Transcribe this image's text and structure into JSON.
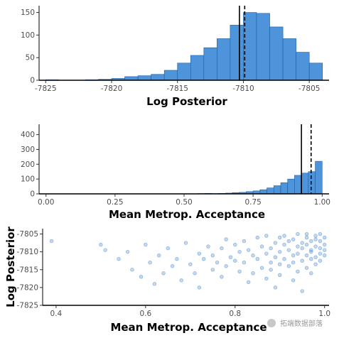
{
  "colors": {
    "bar_fill": "#4d94db",
    "bar_stroke": "#1a5ea8",
    "point_fill": "#4d94db",
    "axis": "#000000",
    "text": "#4d4d4d"
  },
  "chart_data": [
    {
      "type": "bar",
      "panel": "top",
      "xlabel": "Log Posterior",
      "ylabel": "",
      "xlim": [
        -7825.5,
        -7803.5
      ],
      "ylim": [
        0,
        165
      ],
      "xticks": [
        -7825,
        -7820,
        -7815,
        -7810,
        -7805
      ],
      "xtick_labels": [
        "-7825",
        "-7820",
        "-7815",
        "-7810",
        "-7805"
      ],
      "yticks": [
        0,
        50,
        100,
        150
      ],
      "ytick_labels": [
        "0",
        "50",
        "100",
        "150"
      ],
      "bin_edges": [
        -7825,
        -7824,
        -7823,
        -7822,
        -7821,
        -7820,
        -7819,
        -7818,
        -7817,
        -7816,
        -7815,
        -7814,
        -7813,
        -7812,
        -7811,
        -7810,
        -7809,
        -7808,
        -7807,
        -7806,
        -7805,
        -7804
      ],
      "values": [
        1,
        0,
        0,
        1,
        2,
        4,
        8,
        10,
        13,
        22,
        38,
        55,
        72,
        92,
        122,
        150,
        148,
        118,
        92,
        62,
        38,
        12
      ],
      "vlines": [
        {
          "x": -7810.3,
          "style": "solid"
        },
        {
          "x": -7809.9,
          "style": "dashed"
        }
      ],
      "grid": false
    },
    {
      "type": "bar",
      "panel": "middle",
      "xlabel": "Mean Metrop. Acceptance",
      "ylabel": "",
      "xlim": [
        -0.025,
        1.025
      ],
      "ylim": [
        0,
        470
      ],
      "xticks": [
        0.0,
        0.25,
        0.5,
        0.75,
        1.0
      ],
      "xtick_labels": [
        "0.00",
        "0.25",
        "0.50",
        "0.75",
        "1.00"
      ],
      "yticks": [
        0,
        100,
        200,
        300,
        400
      ],
      "ytick_labels": [
        "0",
        "100",
        "200",
        "300",
        "400"
      ],
      "bin_edges": [
        0.0,
        0.025,
        0.05,
        0.075,
        0.1,
        0.125,
        0.15,
        0.175,
        0.2,
        0.225,
        0.25,
        0.275,
        0.3,
        0.325,
        0.35,
        0.375,
        0.4,
        0.425,
        0.45,
        0.475,
        0.5,
        0.525,
        0.55,
        0.575,
        0.6,
        0.625,
        0.65,
        0.675,
        0.7,
        0.725,
        0.75,
        0.775,
        0.8,
        0.825,
        0.85,
        0.875,
        0.9,
        0.925,
        0.95,
        0.975,
        1.0
      ],
      "values": [
        1,
        1,
        1,
        1,
        1,
        1,
        1,
        1,
        1,
        1,
        1,
        1,
        1,
        1,
        1,
        1,
        1,
        1,
        1,
        1,
        1,
        1,
        2,
        3,
        2,
        3,
        5,
        8,
        10,
        15,
        20,
        28,
        40,
        55,
        75,
        100,
        125,
        140,
        150,
        220
      ],
      "vlines": [
        {
          "x": 0.925,
          "style": "solid"
        },
        {
          "x": 0.96,
          "style": "dashed"
        }
      ],
      "grid": false
    },
    {
      "type": "scatter",
      "panel": "bottom",
      "xlabel": "Mean Metrop. Acceptance",
      "ylabel": "Log Posterior",
      "xlim": [
        0.37,
        1.01
      ],
      "ylim": [
        -7825,
        -7803.5
      ],
      "xticks": [
        0.4,
        0.6,
        0.8,
        1.0
      ],
      "xtick_labels": [
        "0.4",
        "0.6",
        "0.8",
        "1.0"
      ],
      "yticks": [
        -7805,
        -7810,
        -7815,
        -7820,
        -7825
      ],
      "ytick_labels": [
        "-7805",
        "-7810",
        "-7815",
        "-7820",
        "-7825"
      ],
      "points": [
        [
          0.39,
          -7807.0
        ],
        [
          0.5,
          -7808.0
        ],
        [
          0.51,
          -7809.5
        ],
        [
          0.54,
          -7812.0
        ],
        [
          0.56,
          -7810.0
        ],
        [
          0.57,
          -7815.0
        ],
        [
          0.59,
          -7817.0
        ],
        [
          0.6,
          -7808.0
        ],
        [
          0.61,
          -7813.0
        ],
        [
          0.62,
          -7819.0
        ],
        [
          0.63,
          -7811.0
        ],
        [
          0.64,
          -7816.0
        ],
        [
          0.65,
          -7809.0
        ],
        [
          0.66,
          -7814.0
        ],
        [
          0.67,
          -7812.0
        ],
        [
          0.68,
          -7818.0
        ],
        [
          0.69,
          -7807.5
        ],
        [
          0.7,
          -7813.5
        ],
        [
          0.71,
          -7816.0
        ],
        [
          0.72,
          -7810.5
        ],
        [
          0.72,
          -7820.0
        ],
        [
          0.73,
          -7812.0
        ],
        [
          0.74,
          -7808.5
        ],
        [
          0.75,
          -7815.0
        ],
        [
          0.75,
          -7811.0
        ],
        [
          0.76,
          -7813.0
        ],
        [
          0.77,
          -7809.0
        ],
        [
          0.77,
          -7817.0
        ],
        [
          0.78,
          -7806.5
        ],
        [
          0.78,
          -7814.0
        ],
        [
          0.79,
          -7811.5
        ],
        [
          0.8,
          -7812.5
        ],
        [
          0.8,
          -7808.0
        ],
        [
          0.81,
          -7815.5
        ],
        [
          0.81,
          -7810.0
        ],
        [
          0.82,
          -7807.0
        ],
        [
          0.82,
          -7813.0
        ],
        [
          0.83,
          -7818.5
        ],
        [
          0.83,
          -7809.5
        ],
        [
          0.84,
          -7811.0
        ],
        [
          0.84,
          -7816.0
        ],
        [
          0.85,
          -7806.0
        ],
        [
          0.85,
          -7812.0
        ],
        [
          0.86,
          -7814.5
        ],
        [
          0.86,
          -7808.5
        ],
        [
          0.87,
          -7810.5
        ],
        [
          0.87,
          -7817.5
        ],
        [
          0.87,
          -7805.5
        ],
        [
          0.88,
          -7813.0
        ],
        [
          0.88,
          -7809.0
        ],
        [
          0.88,
          -7815.0
        ],
        [
          0.89,
          -7807.5
        ],
        [
          0.89,
          -7811.5
        ],
        [
          0.89,
          -7820.0
        ],
        [
          0.9,
          -7806.0
        ],
        [
          0.9,
          -7810.0
        ],
        [
          0.9,
          -7813.5
        ],
        [
          0.9,
          -7816.5
        ],
        [
          0.91,
          -7808.0
        ],
        [
          0.91,
          -7812.0
        ],
        [
          0.91,
          -7805.5
        ],
        [
          0.92,
          -7809.5
        ],
        [
          0.92,
          -7814.0
        ],
        [
          0.92,
          -7807.0
        ],
        [
          0.93,
          -7811.0
        ],
        [
          0.93,
          -7806.5
        ],
        [
          0.93,
          -7818.0
        ],
        [
          0.93,
          -7813.0
        ],
        [
          0.94,
          -7808.5
        ],
        [
          0.94,
          -7810.5
        ],
        [
          0.94,
          -7805.0
        ],
        [
          0.94,
          -7815.5
        ],
        [
          0.95,
          -7807.5
        ],
        [
          0.95,
          -7812.5
        ],
        [
          0.95,
          -7809.0
        ],
        [
          0.95,
          -7821.0
        ],
        [
          0.96,
          -7806.0
        ],
        [
          0.96,
          -7811.0
        ],
        [
          0.96,
          -7808.0
        ],
        [
          0.96,
          -7814.5
        ],
        [
          0.96,
          -7805.0
        ],
        [
          0.97,
          -7809.5
        ],
        [
          0.97,
          -7807.0
        ],
        [
          0.97,
          -7812.0
        ],
        [
          0.97,
          -7810.0
        ],
        [
          0.97,
          -7816.0
        ],
        [
          0.98,
          -7805.5
        ],
        [
          0.98,
          -7808.5
        ],
        [
          0.98,
          -7811.5
        ],
        [
          0.98,
          -7806.5
        ],
        [
          0.98,
          -7813.5
        ],
        [
          0.99,
          -7807.0
        ],
        [
          0.99,
          -7809.0
        ],
        [
          0.99,
          -7805.0
        ],
        [
          0.99,
          -7810.5
        ],
        [
          0.99,
          -7812.5
        ],
        [
          1.0,
          -7806.0
        ],
        [
          1.0,
          -7808.0
        ],
        [
          1.0,
          -7811.0
        ],
        [
          1.0,
          -7809.5
        ]
      ],
      "grid": false
    }
  ],
  "watermark": {
    "text": "拓端数据部落"
  }
}
